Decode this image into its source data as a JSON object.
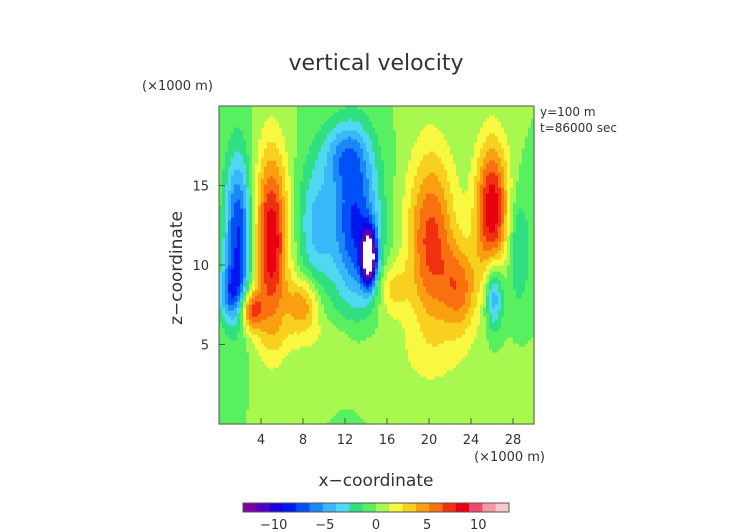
{
  "chart_data": {
    "type": "heatmap",
    "title": "vertical velocity",
    "xlabel": "x−coordinate",
    "ylabel": "z−coordinate",
    "x_unit": "(×1000 m)",
    "y_unit": "(×1000 m)",
    "annotations": [
      "y=100 m",
      "t=86000 sec"
    ],
    "xlim": [
      0,
      30
    ],
    "ylim": [
      0,
      20
    ],
    "x_ticks": [
      4,
      8,
      12,
      16,
      20,
      24,
      28
    ],
    "y_ticks": [
      5,
      10,
      15
    ],
    "colorbar": {
      "ticks": [
        -10,
        -5,
        0,
        5,
        10
      ],
      "range": [
        -13,
        13
      ],
      "colors": [
        "#7a00a0",
        "#5000c0",
        "#1a00e0",
        "#0018f0",
        "#0050f8",
        "#1a88f8",
        "#38b8f8",
        "#50d8f0",
        "#30e080",
        "#58f060",
        "#a8f850",
        "#f8f840",
        "#f8d020",
        "#f8a010",
        "#f87010",
        "#f03010",
        "#e80010",
        "#f04a70",
        "#f49aa8",
        "#f8c8c8"
      ]
    },
    "features": [
      {
        "x": 1.8,
        "z": 12.0,
        "value": -8,
        "sx": 0.9,
        "sz": 3.5
      },
      {
        "x": 1.2,
        "z": 8.2,
        "value": -5,
        "sx": 0.9,
        "sz": 1.3
      },
      {
        "x": 3.0,
        "z": 7.2,
        "value": 7,
        "sx": 0.8,
        "sz": 0.9
      },
      {
        "x": 5.0,
        "z": 11.5,
        "value": 9,
        "sx": 1.1,
        "sz": 4.0
      },
      {
        "x": 8.0,
        "z": 7.6,
        "value": 5,
        "sx": 1.1,
        "sz": 1.2
      },
      {
        "x": 9.2,
        "z": 12.5,
        "value": -4,
        "sx": 1.2,
        "sz": 3.0
      },
      {
        "x": 13.0,
        "z": 12.5,
        "value": -8,
        "sx": 1.6,
        "sz": 3.5
      },
      {
        "x": 14.3,
        "z": 10.5,
        "value": -14,
        "sx": 0.5,
        "sz": 1.2
      },
      {
        "x": 12.0,
        "z": 17.0,
        "value": -4,
        "sx": 1.5,
        "sz": 1.5
      },
      {
        "x": 16.5,
        "z": 8.5,
        "value": 3,
        "sx": 1.0,
        "sz": 1.2
      },
      {
        "x": 20.2,
        "z": 11.5,
        "value": 7,
        "sx": 1.6,
        "sz": 4.0
      },
      {
        "x": 23.0,
        "z": 8.5,
        "value": 5,
        "sx": 1.2,
        "sz": 2.0
      },
      {
        "x": 26.0,
        "z": 13.5,
        "value": 9,
        "sx": 1.1,
        "sz": 3.0
      },
      {
        "x": 26.2,
        "z": 8.2,
        "value": -6,
        "sx": 0.6,
        "sz": 1.6
      },
      {
        "x": 28.5,
        "z": 11.0,
        "value": -3,
        "sx": 0.8,
        "sz": 2.5
      },
      {
        "x": 9.0,
        "z": 5.5,
        "value": 1.2,
        "sx": 4.0,
        "sz": 1.0
      },
      {
        "x": 20.0,
        "z": 4.0,
        "value": 0.8,
        "sx": 5.0,
        "sz": 1.5
      }
    ]
  }
}
